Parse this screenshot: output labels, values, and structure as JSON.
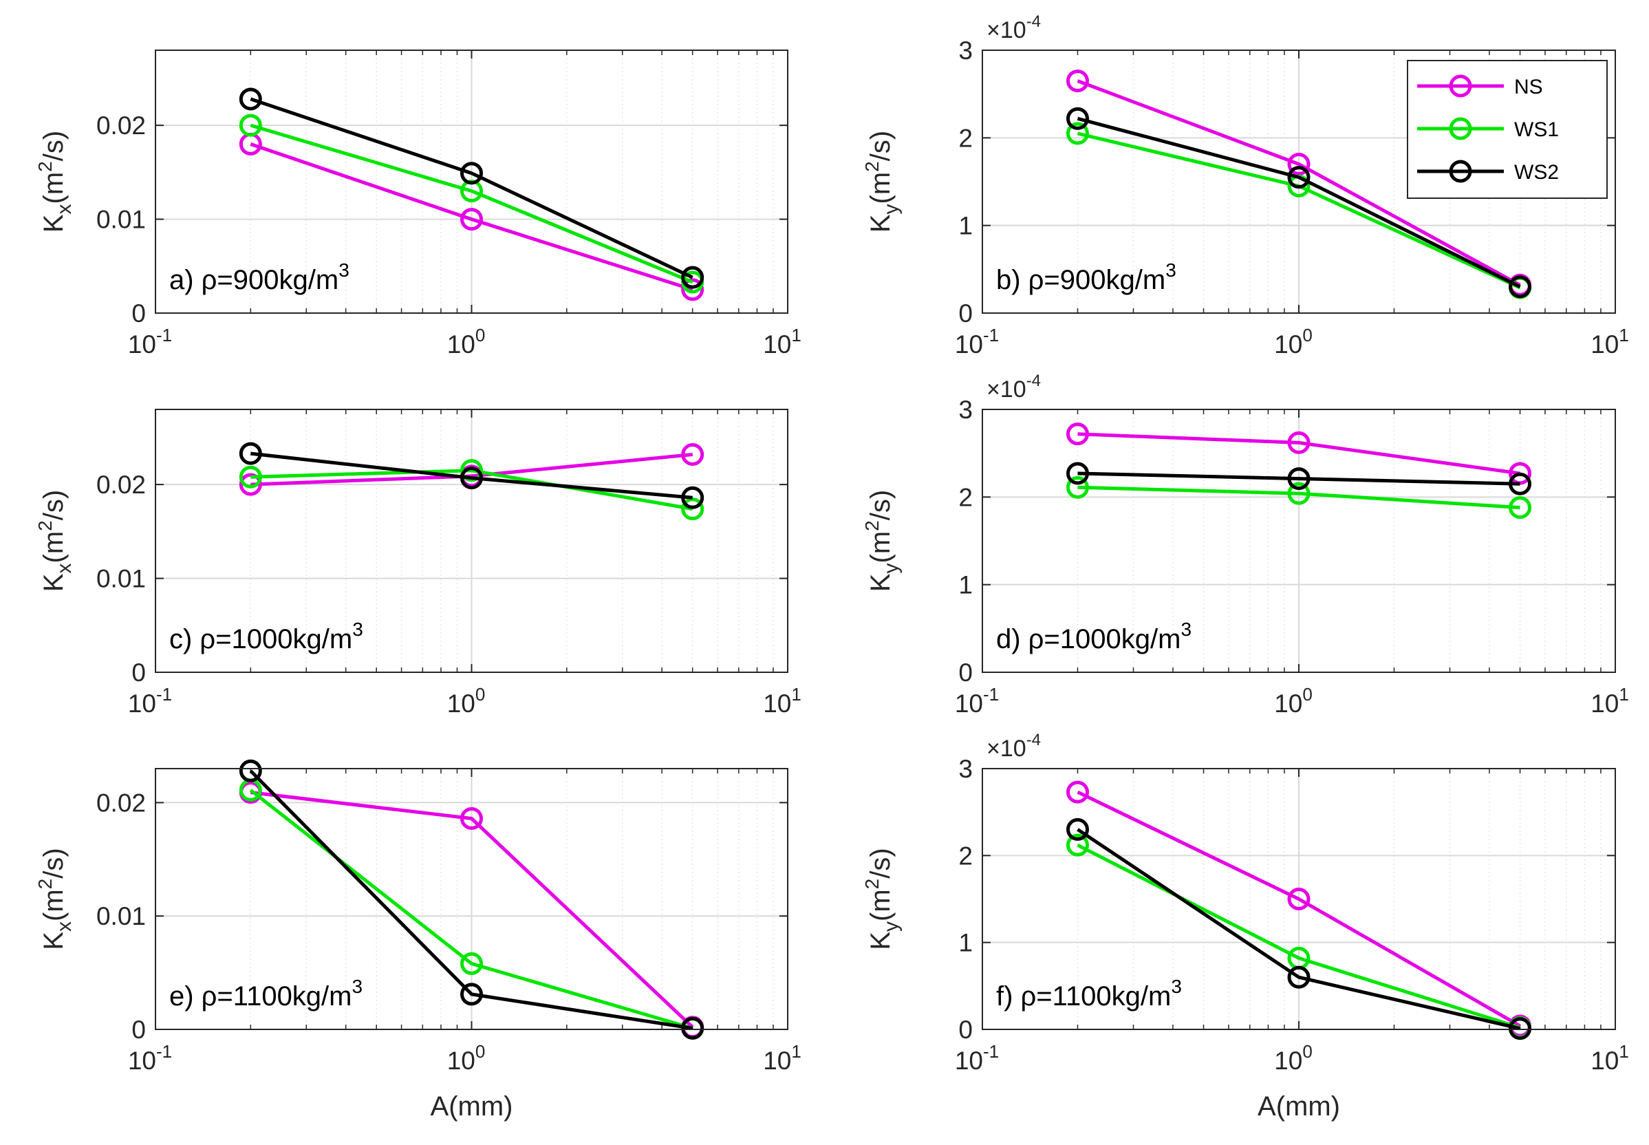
{
  "colors": {
    "NS": "#e500e5",
    "WS1": "#00e500",
    "WS2": "#000000",
    "axis": "#262626",
    "grid": "#d9d9d9"
  },
  "chart_data": [
    {
      "id": "a",
      "type": "line",
      "panel_label": "a) ρ=900kg/m",
      "panel_sup": "3",
      "ylabel": {
        "base": "K",
        "sub": "x",
        "unit_pre": "(m",
        "unit_sup": "2",
        "unit_post": "/s)"
      },
      "xlabel": "",
      "xscale": "log",
      "xlim": [
        0.1,
        10
      ],
      "ylim": [
        0,
        0.028
      ],
      "yticks": [
        0,
        0.01,
        0.02
      ],
      "ytick_labels": [
        "0",
        "0.01",
        "0.02"
      ],
      "x": [
        0.2,
        1,
        5
      ],
      "series": [
        {
          "name": "NS",
          "values": [
            0.018,
            0.01,
            0.0025
          ]
        },
        {
          "name": "WS1",
          "values": [
            0.02,
            0.013,
            0.0033
          ]
        },
        {
          "name": "WS2",
          "values": [
            0.0228,
            0.0149,
            0.0038
          ]
        }
      ]
    },
    {
      "id": "b",
      "type": "line",
      "panel_label": "b) ρ=900kg/m",
      "panel_sup": "3",
      "ylabel": {
        "base": "K",
        "sub": "y",
        "unit_pre": "(m",
        "unit_sup": "2",
        "unit_post": "/s)"
      },
      "xlabel": "",
      "xscale": "log",
      "xlim": [
        0.1,
        10
      ],
      "ylim": [
        0,
        0.0003
      ],
      "yticks": [
        0,
        0.0001,
        0.0002,
        0.0003
      ],
      "ytick_labels": [
        "0",
        "1",
        "2",
        "3"
      ],
      "multiplier": {
        "base": "×10",
        "exp": "-4"
      },
      "x": [
        0.2,
        1,
        5
      ],
      "series": [
        {
          "name": "NS",
          "values": [
            0.000265,
            0.00017,
            3.2e-05
          ]
        },
        {
          "name": "WS1",
          "values": [
            0.000205,
            0.000145,
            2.9e-05
          ]
        },
        {
          "name": "WS2",
          "values": [
            0.000222,
            0.000155,
            3e-05
          ]
        }
      ],
      "legend": {
        "placement": "top-right",
        "entries": [
          "NS",
          "WS1",
          "WS2"
        ]
      }
    },
    {
      "id": "c",
      "type": "line",
      "panel_label": "c) ρ=1000kg/m",
      "panel_sup": "3",
      "ylabel": {
        "base": "K",
        "sub": "x",
        "unit_pre": "(m",
        "unit_sup": "2",
        "unit_post": "/s)"
      },
      "xlabel": "",
      "xscale": "log",
      "xlim": [
        0.1,
        10
      ],
      "ylim": [
        0,
        0.028
      ],
      "yticks": [
        0,
        0.01,
        0.02
      ],
      "ytick_labels": [
        "0",
        "0.01",
        "0.02"
      ],
      "x": [
        0.2,
        1,
        5
      ],
      "series": [
        {
          "name": "NS",
          "values": [
            0.02,
            0.0209,
            0.0232
          ]
        },
        {
          "name": "WS1",
          "values": [
            0.0208,
            0.0215,
            0.0174
          ]
        },
        {
          "name": "WS2",
          "values": [
            0.0233,
            0.0207,
            0.0186
          ]
        }
      ]
    },
    {
      "id": "d",
      "type": "line",
      "panel_label": "d) ρ=1000kg/m",
      "panel_sup": "3",
      "ylabel": {
        "base": "K",
        "sub": "y",
        "unit_pre": "(m",
        "unit_sup": "2",
        "unit_post": "/s)"
      },
      "xlabel": "",
      "xscale": "log",
      "xlim": [
        0.1,
        10
      ],
      "ylim": [
        0,
        0.0003
      ],
      "yticks": [
        0,
        0.0001,
        0.0002,
        0.0003
      ],
      "ytick_labels": [
        "0",
        "1",
        "2",
        "3"
      ],
      "multiplier": {
        "base": "×10",
        "exp": "-4"
      },
      "x": [
        0.2,
        1,
        5
      ],
      "series": [
        {
          "name": "NS",
          "values": [
            0.000272,
            0.000262,
            0.000227
          ]
        },
        {
          "name": "WS1",
          "values": [
            0.000211,
            0.000204,
            0.000188
          ]
        },
        {
          "name": "WS2",
          "values": [
            0.000227,
            0.000221,
            0.000215
          ]
        }
      ]
    },
    {
      "id": "e",
      "type": "line",
      "panel_label": "e) ρ=1100kg/m",
      "panel_sup": "3",
      "ylabel": {
        "base": "K",
        "sub": "x",
        "unit_pre": "(m",
        "unit_sup": "2",
        "unit_post": "/s)"
      },
      "xlabel": "A(mm)",
      "xscale": "log",
      "xlim": [
        0.1,
        10
      ],
      "ylim": [
        0,
        0.023
      ],
      "yticks": [
        0,
        0.01,
        0.02
      ],
      "ytick_labels": [
        "0",
        "0.01",
        "0.02"
      ],
      "x": [
        0.2,
        1,
        5
      ],
      "series": [
        {
          "name": "NS",
          "values": [
            0.0209,
            0.0186,
            0.0002
          ]
        },
        {
          "name": "WS1",
          "values": [
            0.0211,
            0.0058,
            0.0001
          ]
        },
        {
          "name": "WS2",
          "values": [
            0.0228,
            0.0031,
            0.0001
          ]
        }
      ]
    },
    {
      "id": "f",
      "type": "line",
      "panel_label": "f) ρ=1100kg/m",
      "panel_sup": "3",
      "ylabel": {
        "base": "K",
        "sub": "y",
        "unit_pre": "(m",
        "unit_sup": "2",
        "unit_post": "/s)"
      },
      "xlabel": "A(mm)",
      "xscale": "log",
      "xlim": [
        0.1,
        10
      ],
      "ylim": [
        0,
        0.0003
      ],
      "yticks": [
        0,
        0.0001,
        0.0002,
        0.0003
      ],
      "ytick_labels": [
        "0",
        "1",
        "2",
        "3"
      ],
      "multiplier": {
        "base": "×10",
        "exp": "-4"
      },
      "x": [
        0.2,
        1,
        5
      ],
      "series": [
        {
          "name": "NS",
          "values": [
            0.000273,
            0.00015,
            4e-06
          ]
        },
        {
          "name": "WS1",
          "values": [
            0.000212,
            8.2e-05,
            2e-06
          ]
        },
        {
          "name": "WS2",
          "values": [
            0.00023,
            6e-05,
            1e-06
          ]
        }
      ]
    }
  ],
  "xtick_labels": [
    {
      "value": 0.1,
      "base": "10",
      "exp": "-1"
    },
    {
      "value": 1,
      "base": "10",
      "exp": "0"
    },
    {
      "value": 10,
      "base": "10",
      "exp": "1"
    }
  ]
}
